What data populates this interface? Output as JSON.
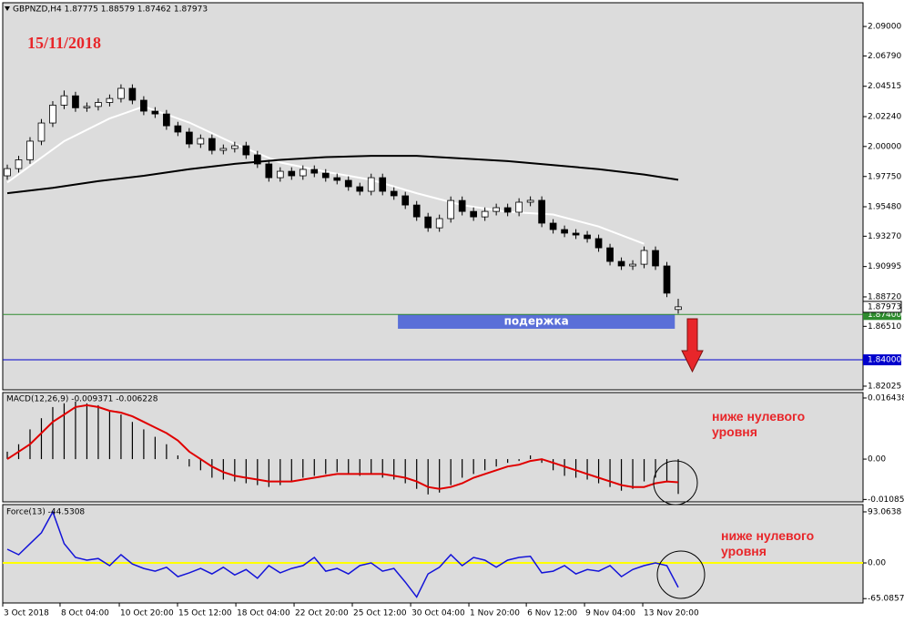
{
  "chart_data": [
    {
      "type": "candlestick",
      "title": "GBPNZD,H4 1.87775 1.88579 1.87462 1.87973",
      "annotation": "15/11/2018",
      "open": [
        1.978,
        1.9834,
        1.99,
        2.004,
        2.0176,
        2.031,
        2.038,
        2.029,
        2.03,
        2.033,
        2.036,
        2.0436,
        2.0347,
        2.0265,
        2.0244,
        2.0155,
        2.0108,
        2.0019,
        2.006,
        1.9971,
        1.9985,
        2.0005,
        1.9937,
        1.9869,
        1.9766,
        1.9814,
        1.978,
        1.9828,
        1.98,
        1.9766,
        1.9746,
        1.9698,
        1.9664,
        1.9766,
        1.9664,
        1.963,
        1.9561,
        1.9472,
        1.939,
        1.9459,
        1.9595,
        1.9513,
        1.9472,
        1.9513,
        1.9541,
        1.9507,
        1.9582,
        1.9596,
        1.9425,
        1.9377,
        1.935,
        1.9336,
        1.9309,
        1.924,
        1.9138,
        1.9104,
        1.9117,
        1.922,
        1.9104,
        1.87775
      ],
      "high": [
        1.9864,
        1.993,
        2.007,
        2.0206,
        2.034,
        2.042,
        2.041,
        2.033,
        2.036,
        2.039,
        2.0466,
        2.0466,
        2.0377,
        2.0295,
        2.0274,
        2.0185,
        2.0138,
        2.009,
        2.009,
        2.0015,
        2.0035,
        2.0035,
        1.9967,
        1.9899,
        1.9844,
        1.9844,
        1.9858,
        1.9858,
        1.983,
        1.9796,
        1.9776,
        1.9728,
        1.9796,
        1.9796,
        1.9694,
        1.966,
        1.9591,
        1.9502,
        1.9489,
        1.9625,
        1.9625,
        1.9543,
        1.9543,
        1.9571,
        1.9571,
        1.9612,
        1.9626,
        1.9626,
        1.9455,
        1.9407,
        1.938,
        1.9366,
        1.9339,
        1.927,
        1.9168,
        1.9147,
        1.925,
        1.925,
        1.9134,
        1.88579
      ],
      "low": [
        1.975,
        1.9804,
        1.987,
        2.001,
        2.0146,
        2.028,
        2.026,
        2.026,
        2.027,
        2.03,
        2.033,
        2.0317,
        2.0235,
        2.0214,
        2.0125,
        2.0078,
        1.9989,
        1.9989,
        1.9941,
        1.9941,
        1.9955,
        1.9907,
        1.9839,
        1.9736,
        1.9736,
        1.975,
        1.975,
        1.977,
        1.9736,
        1.9716,
        1.9668,
        1.9634,
        1.9634,
        1.9634,
        1.96,
        1.9531,
        1.9442,
        1.936,
        1.936,
        1.9429,
        1.9483,
        1.9442,
        1.9442,
        1.9483,
        1.9477,
        1.9477,
        1.9552,
        1.9395,
        1.9347,
        1.932,
        1.9306,
        1.9279,
        1.921,
        1.9108,
        1.9074,
        1.9074,
        1.9087,
        1.9074,
        1.887,
        1.87462
      ],
      "close": [
        1.9834,
        1.99,
        2.004,
        2.0176,
        2.031,
        2.038,
        2.029,
        2.03,
        2.033,
        2.036,
        2.0436,
        2.0347,
        2.0265,
        2.0244,
        2.0155,
        2.0108,
        2.0019,
        2.006,
        1.9971,
        1.9985,
        2.0005,
        1.9937,
        1.9869,
        1.9766,
        1.9814,
        1.978,
        1.9828,
        1.98,
        1.9766,
        1.9746,
        1.9698,
        1.9664,
        1.9766,
        1.9664,
        1.963,
        1.9561,
        1.9472,
        1.939,
        1.9459,
        1.9595,
        1.9513,
        1.9472,
        1.9513,
        1.9541,
        1.9507,
        1.9582,
        1.9596,
        1.9425,
        1.9377,
        1.935,
        1.9336,
        1.9309,
        1.924,
        1.9138,
        1.9104,
        1.9117,
        1.922,
        1.9104,
        1.89,
        1.87973
      ],
      "series": [
        {
          "color": "#ffffff",
          "x": [
            0,
            5,
            9,
            12,
            16,
            20,
            24,
            28,
            32,
            36,
            40,
            44,
            48,
            52,
            56
          ],
          "values": [
            1.973,
            2.004,
            2.021,
            2.03,
            2.018,
            2.002,
            1.988,
            1.981,
            1.975,
            1.965,
            1.956,
            1.951,
            1.949,
            1.94,
            1.927
          ]
        },
        {
          "color": "#000000",
          "x": [
            0,
            4,
            8,
            12,
            16,
            20,
            24,
            28,
            32,
            36,
            40,
            44,
            48,
            52,
            56,
            59
          ],
          "values": [
            1.965,
            1.969,
            1.974,
            1.978,
            1.983,
            1.987,
            1.99,
            1.992,
            1.993,
            1.993,
            1.991,
            1.989,
            1.986,
            1.983,
            1.979,
            1.975
          ]
        }
      ],
      "levels": [
        {
          "value": 1.874,
          "label": "1.87400",
          "color": "#2e8b2e"
        },
        {
          "value": 1.84,
          "label": "1.84000",
          "color": "#0000cc"
        }
      ],
      "last_price": 1.87973,
      "zone": {
        "label": "подержка",
        "x": [
          34.35,
          58.7
        ],
        "y": [
          1.8633,
          1.874
        ],
        "color": "#5a6fd8"
      },
      "xlim": [
        -0.4,
        75.25
      ],
      "xticks": [
        {
          "value": -0.4,
          "label": "3 Oct 2018"
        },
        {
          "value": 4.64,
          "label": "8 Oct 04:00"
        },
        {
          "value": 9.85,
          "label": "10 Oct 20:00"
        },
        {
          "value": 14.97,
          "label": "15 Oct 12:00"
        },
        {
          "value": 20.1,
          "label": "18 Oct 04:00"
        },
        {
          "value": 25.22,
          "label": "22 Oct 20:00"
        },
        {
          "value": 30.34,
          "label": "25 Oct 12:00"
        },
        {
          "value": 35.47,
          "label": "30 Oct 04:00"
        },
        {
          "value": 40.59,
          "label": "1 Nov 20:00"
        },
        {
          "value": 45.64,
          "label": "6 Nov 12:00"
        },
        {
          "value": 50.76,
          "label": "9 Nov 04:00"
        },
        {
          "value": 55.88,
          "label": "13 Nov 20:00"
        }
      ],
      "ylim": [
        1.8175,
        2.1078
      ],
      "yticks": [
        {
          "value": 2.09,
          "label": "2.09000"
        },
        {
          "value": 2.0679,
          "label": "2.06790"
        },
        2.04515,
        {
          "value": 2.0224,
          "label": "2.02240"
        },
        {
          "value": 2.0,
          "label": "2.00000"
        },
        {
          "value": 1.9775,
          "label": "1.97750"
        },
        {
          "value": 1.9548,
          "label": "1.95480"
        },
        {
          "value": 1.9327,
          "label": "1.93270"
        },
        1.90995,
        {
          "value": 1.8872,
          "label": "1.88720"
        },
        {
          "value": 1.8651,
          "label": "1.86510"
        },
        1.82025
      ]
    },
    {
      "type": "macd",
      "title": "MACD(12,26,9) -0.009371 -0.006228",
      "annotation": [
        "ниже нулевого",
        "уровня"
      ],
      "series": [
        {
          "type": "bar",
          "color": "#000000",
          "values": [
            0.002,
            0.004,
            0.008,
            0.011,
            0.014,
            0.015,
            0.0155,
            0.015,
            0.0145,
            0.013,
            0.012,
            0.01,
            0.008,
            0.006,
            0.004,
            0.001,
            -0.002,
            -0.003,
            -0.005,
            -0.0055,
            -0.006,
            -0.0065,
            -0.007,
            -0.0075,
            -0.007,
            -0.006,
            -0.005,
            -0.0045,
            -0.004,
            -0.0035,
            -0.004,
            -0.0045,
            -0.004,
            -0.005,
            -0.0055,
            -0.0065,
            -0.008,
            -0.0095,
            -0.009,
            -0.007,
            -0.005,
            -0.004,
            -0.003,
            -0.002,
            -0.001,
            -0.0005,
            0.001,
            -0.001,
            -0.003,
            -0.0045,
            -0.005,
            -0.0055,
            -0.0065,
            -0.0075,
            -0.0085,
            -0.008,
            -0.006,
            -0.005,
            -0.006,
            -0.009371
          ]
        },
        {
          "type": "line",
          "color": "#e00000",
          "values": [
            0.0,
            0.002,
            0.004,
            0.007,
            0.01,
            0.012,
            0.014,
            0.0145,
            0.014,
            0.013,
            0.0125,
            0.0115,
            0.01,
            0.0085,
            0.007,
            0.005,
            0.002,
            0.0,
            -0.002,
            -0.0035,
            -0.0045,
            -0.005,
            -0.0055,
            -0.006,
            -0.006,
            -0.006,
            -0.0055,
            -0.005,
            -0.0045,
            -0.004,
            -0.004,
            -0.004,
            -0.004,
            -0.004,
            -0.0045,
            -0.005,
            -0.006,
            -0.0075,
            -0.008,
            -0.0075,
            -0.0065,
            -0.005,
            -0.004,
            -0.003,
            -0.002,
            -0.0015,
            -0.0005,
            0.0,
            -0.001,
            -0.002,
            -0.003,
            -0.004,
            -0.005,
            -0.006,
            -0.007,
            -0.0075,
            -0.0075,
            -0.0065,
            -0.006,
            -0.006228
          ]
        }
      ],
      "ylim": [
        -0.0115,
        0.0179
      ],
      "yticks": [
        0.016438,
        {
          "value": 0,
          "label": "0.00"
        },
        -0.010855
      ]
    },
    {
      "type": "line",
      "title": "Force(13) -44.5308",
      "annotation": [
        "ниже нулевого",
        "уровня"
      ],
      "color": "#1414d8",
      "zero_line_color": "#ffff00",
      "values": [
        25,
        15,
        35,
        55,
        93.0638,
        35,
        10,
        5,
        8,
        -5,
        15,
        -2,
        -10,
        -15,
        -8,
        -25,
        -18,
        -10,
        -20,
        -8,
        -22,
        -12,
        -28,
        -5,
        -18,
        -10,
        -5,
        10,
        -15,
        -10,
        -20,
        -5,
        0,
        -15,
        -10,
        -35,
        -62,
        -20,
        -8,
        15,
        -5,
        10,
        5,
        -8,
        5,
        10,
        12,
        -18,
        -15,
        -5,
        -20,
        -12,
        -15,
        -5,
        -25,
        -12,
        -5,
        0,
        -5,
        -44.5308
      ],
      "ylim": [
        -73,
        106.3
      ],
      "yticks": [
        93.0638,
        {
          "value": 0,
          "label": "0.00"
        },
        -65.0857
      ]
    }
  ]
}
